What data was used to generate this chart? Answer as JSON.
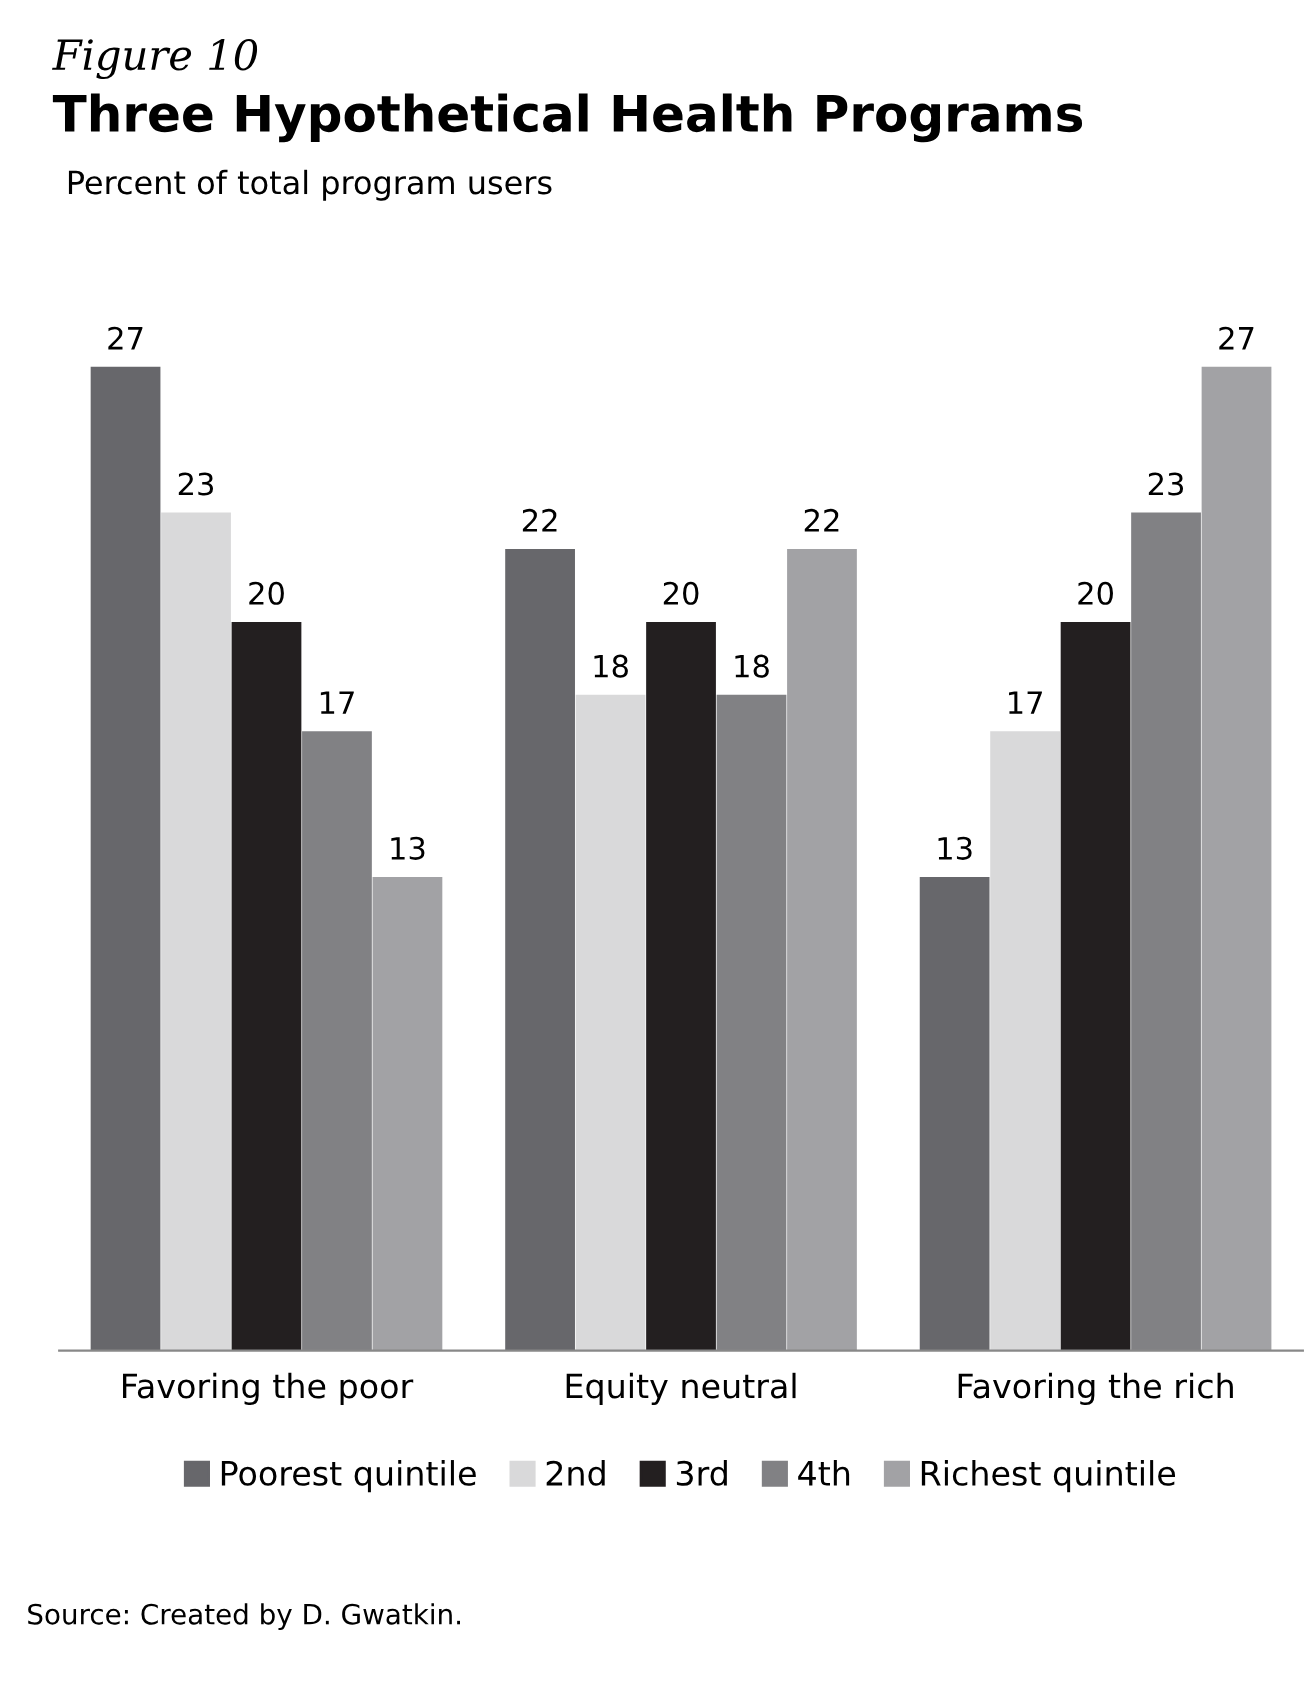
{
  "chart_data": {
    "type": "bar",
    "title": "Three Hypothetical Health Programs",
    "subtitle": "Percent of total program users",
    "annotations": [
      "Figure 10",
      "Source: Created by D. Gwatkin."
    ],
    "categories": [
      "Favoring the poor",
      "Equity neutral",
      "Favoring the rich"
    ],
    "series": [
      {
        "name": "Poorest quintile",
        "color": "#67676b",
        "values": [
          27,
          22,
          13
        ]
      },
      {
        "name": "2nd",
        "color": "#d9d9da",
        "values": [
          23,
          18,
          17
        ]
      },
      {
        "name": "3rd",
        "color": "#231f20",
        "values": [
          20,
          20,
          20
        ]
      },
      {
        "name": "4th",
        "color": "#818184",
        "values": [
          17,
          18,
          23
        ]
      },
      {
        "name": "Richest quintile",
        "color": "#a2a2a5",
        "values": [
          13,
          22,
          27
        ]
      }
    ],
    "data_labels": true,
    "legend": "bottom",
    "grid": false
  }
}
